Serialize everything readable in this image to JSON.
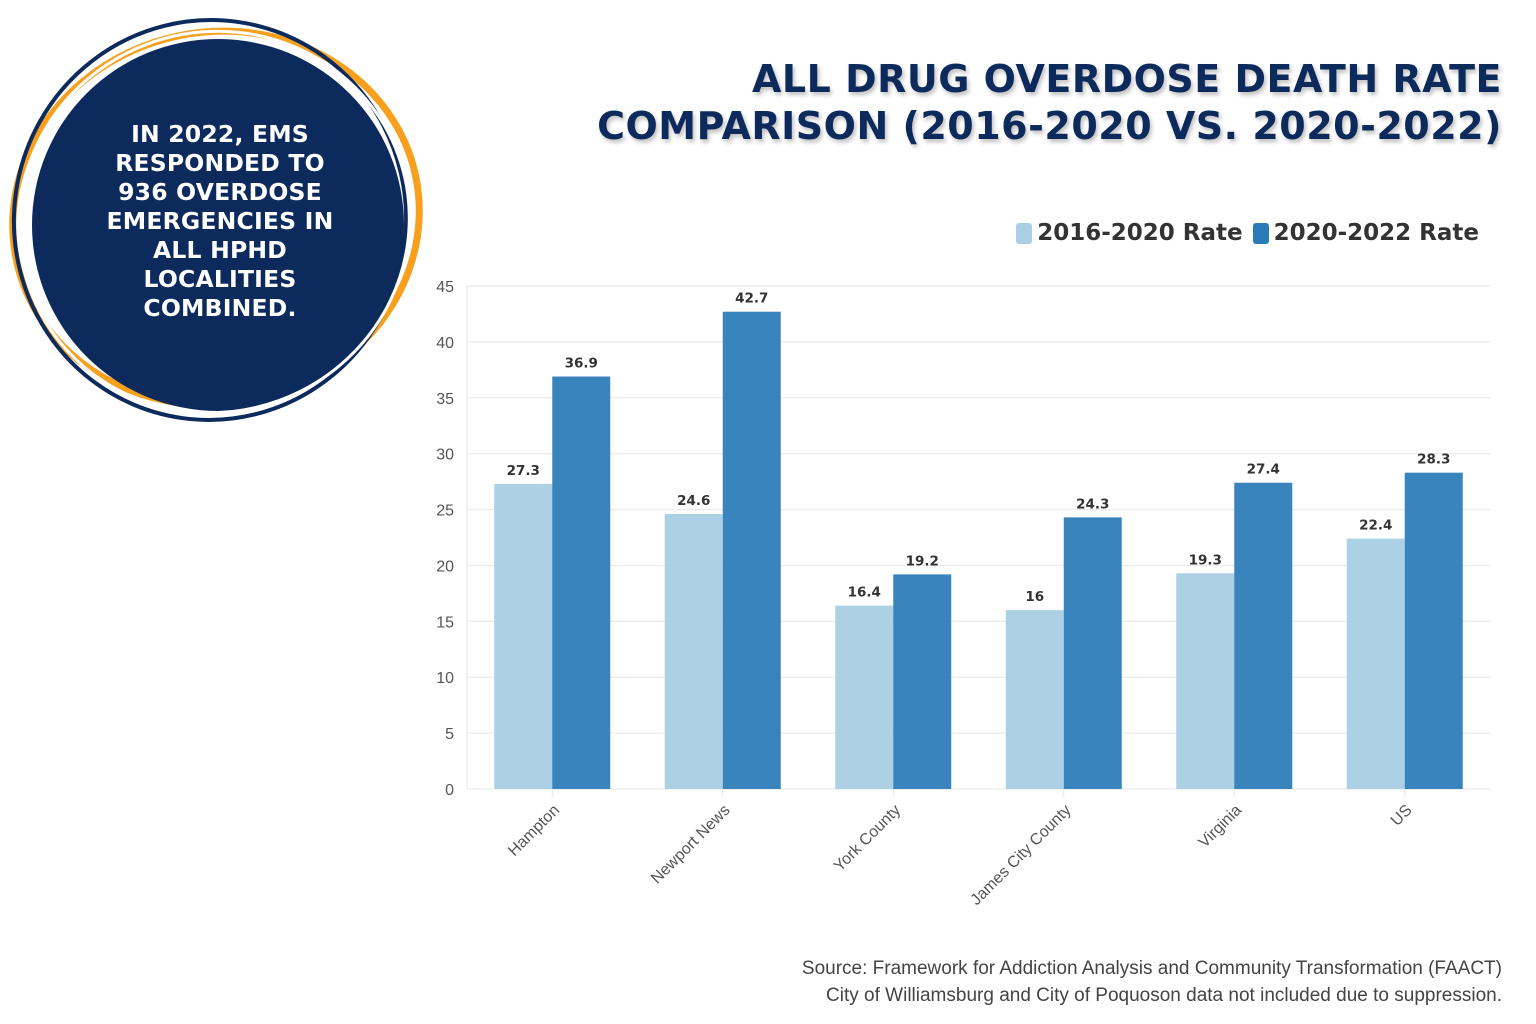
{
  "badge": {
    "lines": [
      "IN 2022, EMS",
      "RESPONDED TO",
      "936 OVERDOSE",
      "EMERGENCIES IN",
      "ALL HPHD",
      "LOCALITIES",
      "COMBINED."
    ],
    "fill_color": "#0d2a5c",
    "ring_colors": [
      "#f7a01e",
      "#0d2a5c"
    ]
  },
  "title": {
    "line1": "ALL DRUG OVERDOSE DEATH RATE",
    "line2": "COMPARISON (2016-2020 VS. 2020-2022)"
  },
  "source": {
    "line1": "Source: Framework for Addiction Analysis and Community Transformation (FAACT)",
    "line2": "City of Williamsburg and City of Poquoson data not included due to suppression."
  },
  "chart_data": {
    "type": "bar",
    "title": "All Drug Overdose Death Rate Comparison (2016-2020 vs. 2020-2022)",
    "xlabel": "",
    "ylabel": "",
    "categories": [
      "Hampton",
      "Newport News",
      "York County",
      "James City County",
      "Virginia",
      "US"
    ],
    "series": [
      {
        "name": "2016-2020 Rate",
        "color": "#a8cfe4",
        "values": [
          27.3,
          24.6,
          16.4,
          16,
          19.3,
          22.4
        ],
        "labels": [
          "27.3",
          "24.6",
          "16.4",
          "16",
          "19.3",
          "22.4"
        ]
      },
      {
        "name": "2020-2022 Rate",
        "color": "#2b7bb9",
        "values": [
          36.9,
          42.7,
          19.2,
          24.3,
          27.4,
          28.3
        ],
        "labels": [
          "36.9",
          "42.7",
          "19.2",
          "24.3",
          "27.4",
          "28.3"
        ]
      }
    ],
    "ylim": [
      0,
      45
    ],
    "yticks": [
      0,
      5,
      10,
      15,
      20,
      25,
      30,
      35,
      40,
      45
    ],
    "grid": true,
    "legend_position": "top-right",
    "xtick_rotation": "-45deg"
  }
}
